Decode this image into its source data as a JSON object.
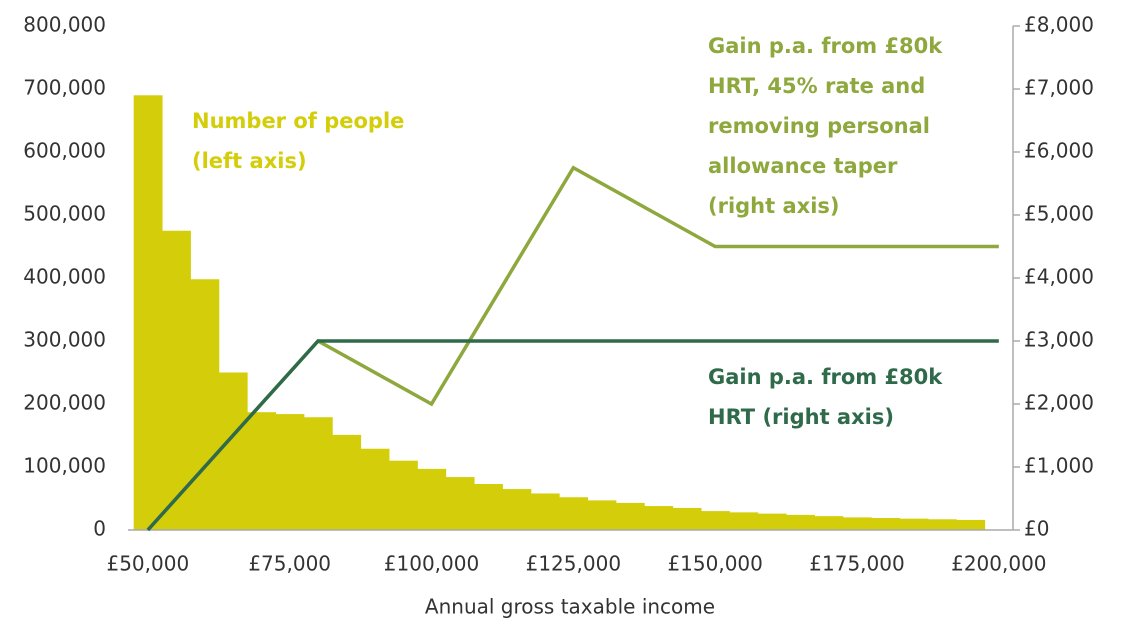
{
  "chart_data": {
    "type": "histogram",
    "x_label": "Annual gross taxable income",
    "bins": [
      47500,
      52500,
      57500,
      62500,
      67500,
      72500,
      77500,
      82500,
      87500,
      92500,
      97500,
      102500,
      107500,
      112500,
      117500,
      122500,
      127500,
      132500,
      137500,
      142500,
      147500,
      152500,
      157500,
      162500,
      167500,
      172500,
      177500,
      182500,
      187500,
      192500,
      197500
    ],
    "counts": [
      690000,
      475000,
      398000,
      250000,
      187000,
      184000,
      179000,
      151000,
      129000,
      110000,
      97000,
      84000,
      73000,
      65000,
      58000,
      52000,
      47000,
      43000,
      38000,
      35000,
      30000,
      28000,
      26000,
      24000,
      22000,
      20000,
      19000,
      18000,
      17000,
      16000
    ],
    "color": "#d4cd0a",
    "lines": {
      "x": [
        50000,
        80000,
        100000,
        125000,
        150000,
        200000
      ],
      "series": [
        {
          "name": "Gain p.a. from £80k HRT, 45% rate and removing personal allowance taper (right axis)",
          "color": "#8ea83e",
          "axis": "y2",
          "values": [
            0,
            3000,
            2000,
            5750,
            4500,
            4500
          ]
        },
        {
          "name": "Gain p.a. from £80k HRT (right axis)",
          "color": "#2f6a4a",
          "axis": "y2",
          "values": [
            0,
            3000,
            3000,
            3000,
            3000,
            3000
          ]
        }
      ]
    },
    "annotations": [
      {
        "lines": [
          "Number of people",
          "(left axis)"
        ],
        "color": "#d4cd0a"
      },
      {
        "lines": [
          "Gain p.a. from £80k",
          "HRT, 45% rate and",
          "removing personal",
          "allowance taper",
          "(right axis)"
        ],
        "color": "#8ea83e"
      },
      {
        "lines": [
          "Gain p.a. from £80k",
          "HRT (right axis)"
        ],
        "color": "#2f6a4a"
      }
    ],
    "xlim": [
      46500,
      202500
    ],
    "xticks": [
      {
        "value": 50000,
        "label": "£50,000"
      },
      {
        "value": 75000,
        "label": "£75,000"
      },
      {
        "value": 100000,
        "label": "£100,000"
      },
      {
        "value": 125000,
        "label": "£125,000"
      },
      {
        "value": 150000,
        "label": "£150,000"
      },
      {
        "value": 175000,
        "label": "£175,000"
      },
      {
        "value": 200000,
        "label": "£200,000"
      }
    ],
    "ylim": [
      0,
      800000
    ],
    "yticks": [
      0,
      {
        "value": 100000,
        "label": "100,000"
      },
      {
        "value": 200000,
        "label": "200,000"
      },
      {
        "value": 300000,
        "label": "300,000"
      },
      {
        "value": 400000,
        "label": "400,000"
      },
      {
        "value": 500000,
        "label": "500,000"
      },
      {
        "value": 600000,
        "label": "600,000"
      },
      {
        "value": 700000,
        "label": "700,000"
      },
      {
        "value": 800000,
        "label": "800,000"
      }
    ],
    "y2lim": [
      0,
      8000
    ],
    "y2ticks": [
      {
        "value": 0,
        "label": "£0"
      },
      {
        "value": 1000,
        "label": "£1,000"
      },
      {
        "value": 2000,
        "label": "£2,000"
      },
      {
        "value": 3000,
        "label": "£3,000"
      },
      {
        "value": 4000,
        "label": "£4,000"
      },
      {
        "value": 5000,
        "label": "£5,000"
      },
      {
        "value": 6000,
        "label": "£6,000"
      },
      {
        "value": 7000,
        "label": "£7,000"
      },
      {
        "value": 8000,
        "label": "£8,000"
      }
    ]
  }
}
